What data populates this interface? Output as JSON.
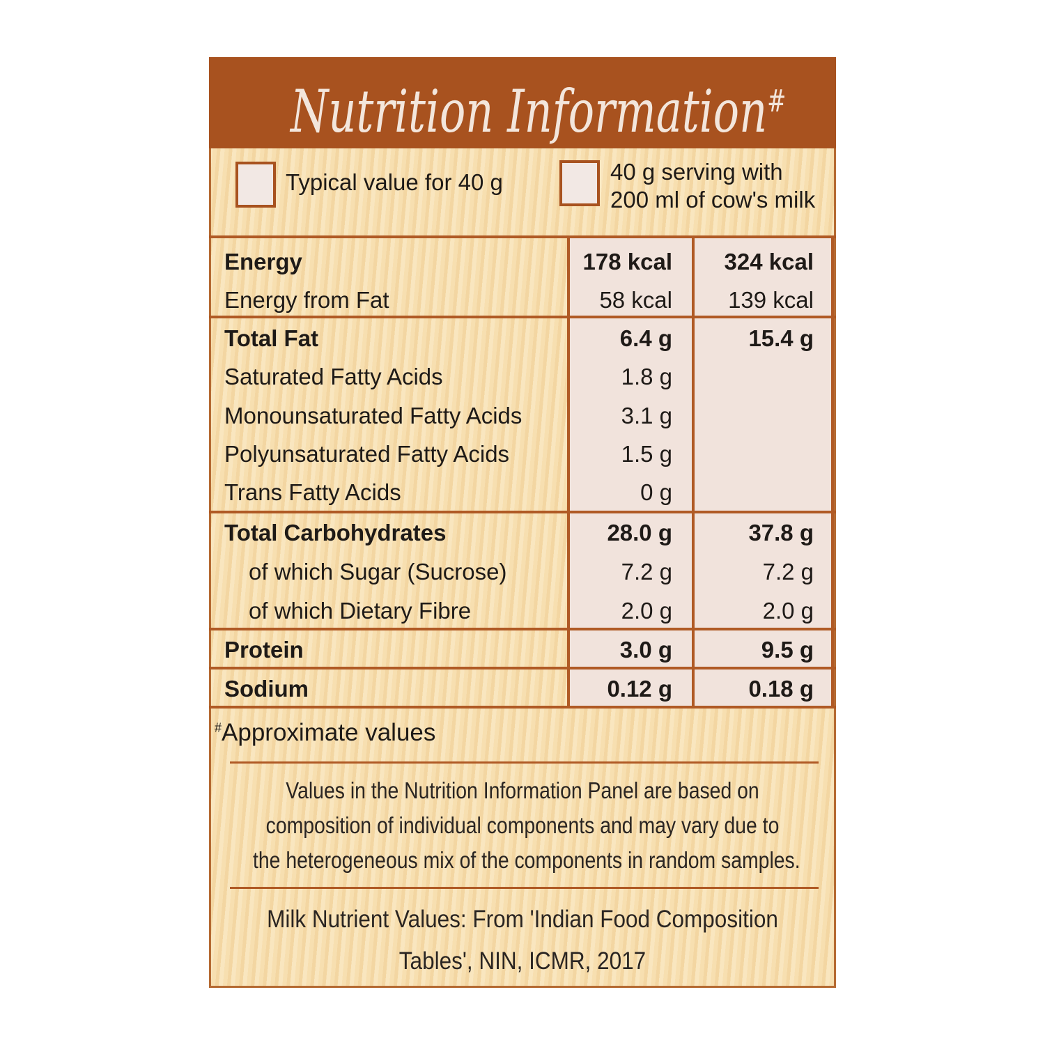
{
  "title": "Nutrition Information",
  "title_mark": "#",
  "legend": [
    {
      "label": "Typical value for 40 g"
    },
    {
      "label_line1": "40 g serving with",
      "label_line2": "200 ml of cow's milk"
    }
  ],
  "rows": [
    {
      "label": "Energy",
      "v1": "178 kcal",
      "v2": "324 kcal",
      "bold": true
    },
    {
      "label": "Energy from Fat",
      "v1": "58 kcal",
      "v2": "139 kcal"
    },
    {
      "label": "Total Fat",
      "v1": "6.4 g",
      "v2": "15.4 g",
      "bold": true
    },
    {
      "label": "Saturated Fatty Acids",
      "v1": "1.8 g",
      "v2": ""
    },
    {
      "label": "Monounsaturated Fatty Acids",
      "v1": "3.1 g",
      "v2": ""
    },
    {
      "label": "Polyunsaturated Fatty Acids",
      "v1": "1.5 g",
      "v2": ""
    },
    {
      "label": "Trans Fatty Acids",
      "v1": "0 g",
      "v2": ""
    },
    {
      "label": "Total Carbohydrates",
      "v1": "28.0 g",
      "v2": "37.8 g",
      "bold": true
    },
    {
      "label": "of which Sugar (Sucrose)",
      "v1": "7.2 g",
      "v2": "7.2 g",
      "indent": true
    },
    {
      "label": "of which Dietary Fibre",
      "v1": "2.0 g",
      "v2": "2.0 g",
      "indent": true
    },
    {
      "label": "Protein",
      "v1": "3.0 g",
      "v2": "9.5 g",
      "bold": true
    },
    {
      "label": "Sodium",
      "v1": "0.12 g",
      "v2": "0.18 g",
      "bold": true
    }
  ],
  "footnote_mark": "#",
  "footnote": "Approximate values",
  "disclaimer": [
    "Values in the Nutrition Information Panel are based on",
    "composition of individual components and may vary due to",
    "the heterogeneous mix of the components in random samples."
  ],
  "source": [
    "Milk Nutrient Values: From 'Indian Food Composition",
    "Tables', NIN, ICMR, 2017"
  ],
  "colors": {
    "header": "#a8521f",
    "rule": "#b05a25",
    "value_cell": "#f1e3dc",
    "background": "#f7dfb0"
  }
}
